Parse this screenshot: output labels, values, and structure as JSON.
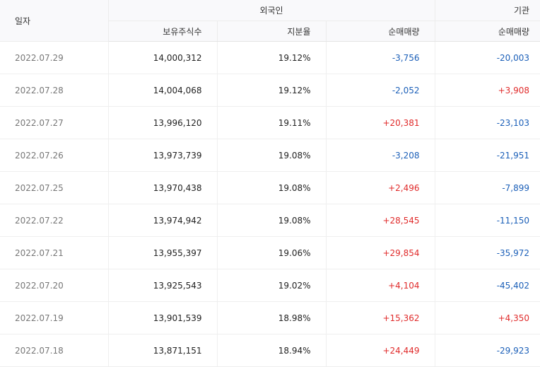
{
  "header": {
    "date": "일자",
    "foreign": "외국인",
    "institution": "기관",
    "holdings": "보유주식수",
    "share_ratio": "지분율",
    "foreign_net": "순매매량",
    "institution_net": "순매매량"
  },
  "rows": [
    {
      "date": "2022.07.29",
      "holdings": "14,000,312",
      "ratio": "19.12%",
      "foreign_net": "-3,756",
      "inst_net": "-20,003"
    },
    {
      "date": "2022.07.28",
      "holdings": "14,004,068",
      "ratio": "19.12%",
      "foreign_net": "-2,052",
      "inst_net": "+3,908"
    },
    {
      "date": "2022.07.27",
      "holdings": "13,996,120",
      "ratio": "19.11%",
      "foreign_net": "+20,381",
      "inst_net": "-23,103"
    },
    {
      "date": "2022.07.26",
      "holdings": "13,973,739",
      "ratio": "19.08%",
      "foreign_net": "-3,208",
      "inst_net": "-21,951"
    },
    {
      "date": "2022.07.25",
      "holdings": "13,970,438",
      "ratio": "19.08%",
      "foreign_net": "+2,496",
      "inst_net": "-7,899"
    },
    {
      "date": "2022.07.22",
      "holdings": "13,974,942",
      "ratio": "19.08%",
      "foreign_net": "+28,545",
      "inst_net": "-11,150"
    },
    {
      "date": "2022.07.21",
      "holdings": "13,955,397",
      "ratio": "19.06%",
      "foreign_net": "+29,854",
      "inst_net": "-35,972"
    },
    {
      "date": "2022.07.20",
      "holdings": "13,925,543",
      "ratio": "19.02%",
      "foreign_net": "+4,104",
      "inst_net": "-45,402"
    },
    {
      "date": "2022.07.19",
      "holdings": "13,901,539",
      "ratio": "18.98%",
      "foreign_net": "+15,362",
      "inst_net": "+4,350"
    },
    {
      "date": "2022.07.18",
      "holdings": "13,871,151",
      "ratio": "18.94%",
      "foreign_net": "+24,449",
      "inst_net": "-29,923"
    }
  ],
  "colors": {
    "positive": "#e02b2b",
    "negative": "#1b5fb8"
  }
}
